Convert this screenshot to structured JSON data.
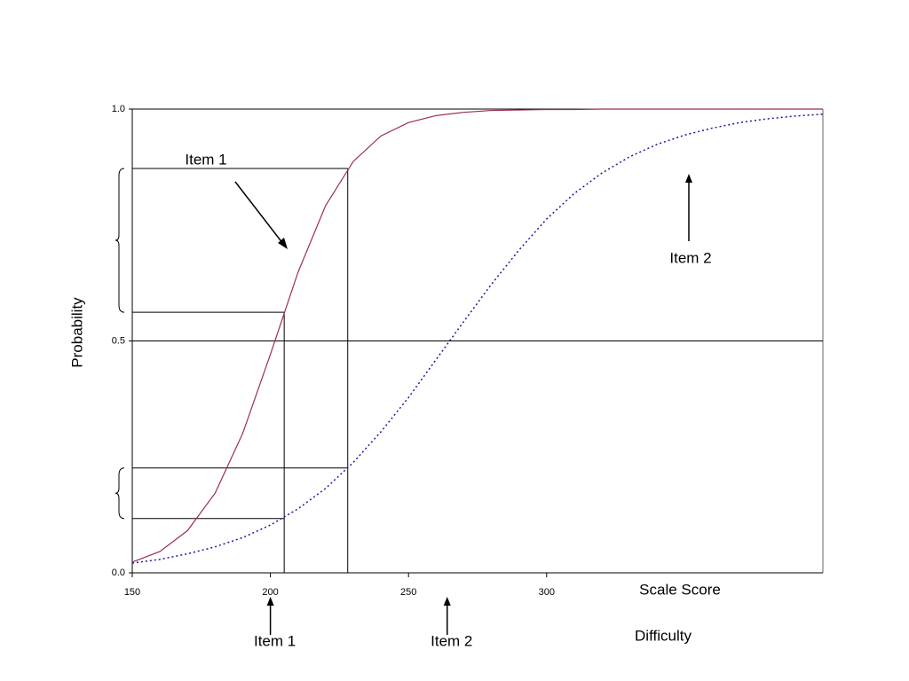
{
  "chart_data": {
    "type": "line",
    "y_label": "Probability",
    "x_label": "Scale Score",
    "x_sublabel": "Difficulty",
    "x": [
      150,
      160,
      170,
      180,
      190,
      200,
      210,
      220,
      230,
      240,
      250,
      260,
      270,
      280,
      290,
      300,
      310,
      320,
      330,
      340,
      350,
      360,
      370,
      380,
      390,
      400
    ],
    "series": [
      {
        "name": "Item 1",
        "color": "#9b2d56",
        "dash": "solid",
        "values": [
          0.023,
          0.046,
          0.091,
          0.172,
          0.301,
          0.471,
          0.648,
          0.792,
          0.887,
          0.942,
          0.971,
          0.986,
          0.993,
          0.997,
          0.998,
          0.999,
          0.999,
          1.0,
          1.0,
          1.0,
          1.0,
          1.0,
          1.0,
          1.0,
          1.0,
          1.0
        ]
      },
      {
        "name": "Item 2",
        "color": "#1a1aa0",
        "dash": "dotted",
        "values": [
          0.021,
          0.029,
          0.041,
          0.056,
          0.076,
          0.103,
          0.138,
          0.182,
          0.238,
          0.304,
          0.378,
          0.46,
          0.542,
          0.622,
          0.696,
          0.763,
          0.818,
          0.862,
          0.897,
          0.924,
          0.944,
          0.959,
          0.971,
          0.979,
          0.985,
          0.989
        ]
      }
    ],
    "xlim": [
      150,
      400
    ],
    "xticks": [
      150,
      200,
      250,
      300
    ],
    "ylim": [
      0,
      1
    ],
    "yticks": [
      {
        "value": 0,
        "label": "0.0"
      },
      {
        "value": 0.5,
        "label": "0.5"
      },
      {
        "value": 1,
        "label": "1.0"
      }
    ],
    "grid": true,
    "guides": [
      {
        "x": 205,
        "y_item1": 0.562,
        "y_item2": 0.117
      },
      {
        "x": 228,
        "y_item1": 0.872,
        "y_item2": 0.226
      }
    ],
    "difficulties": [
      {
        "label": "Item 1",
        "x": 200
      },
      {
        "label": "Item 2",
        "x": 264
      }
    ]
  }
}
